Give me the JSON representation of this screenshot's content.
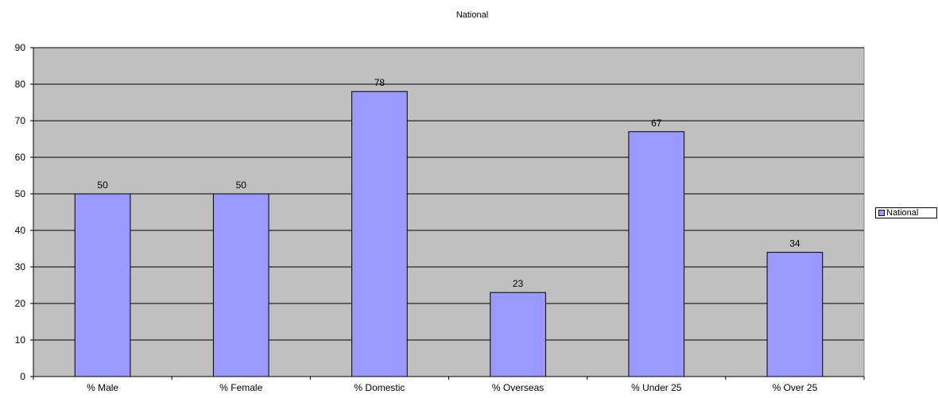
{
  "chart_data": {
    "type": "bar",
    "title": "National",
    "xlabel": "",
    "ylabel": "",
    "categories": [
      "% Male",
      "% Female",
      "% Domestic",
      "% Overseas",
      "% Under 25",
      "% Over 25"
    ],
    "series": [
      {
        "name": "National",
        "values": [
          50,
          50,
          78,
          23,
          67,
          34
        ]
      }
    ],
    "ylim": [
      0,
      90
    ],
    "yticks": [
      0,
      10,
      20,
      30,
      40,
      50,
      60,
      70,
      80,
      90
    ],
    "grid": true,
    "legend_position": "right",
    "data_labels": true,
    "colors": {
      "bar_fill": "#9999ff",
      "plot_background": "#c0c0c0",
      "gridline": "#000000",
      "bar_outline": "#000000"
    }
  }
}
